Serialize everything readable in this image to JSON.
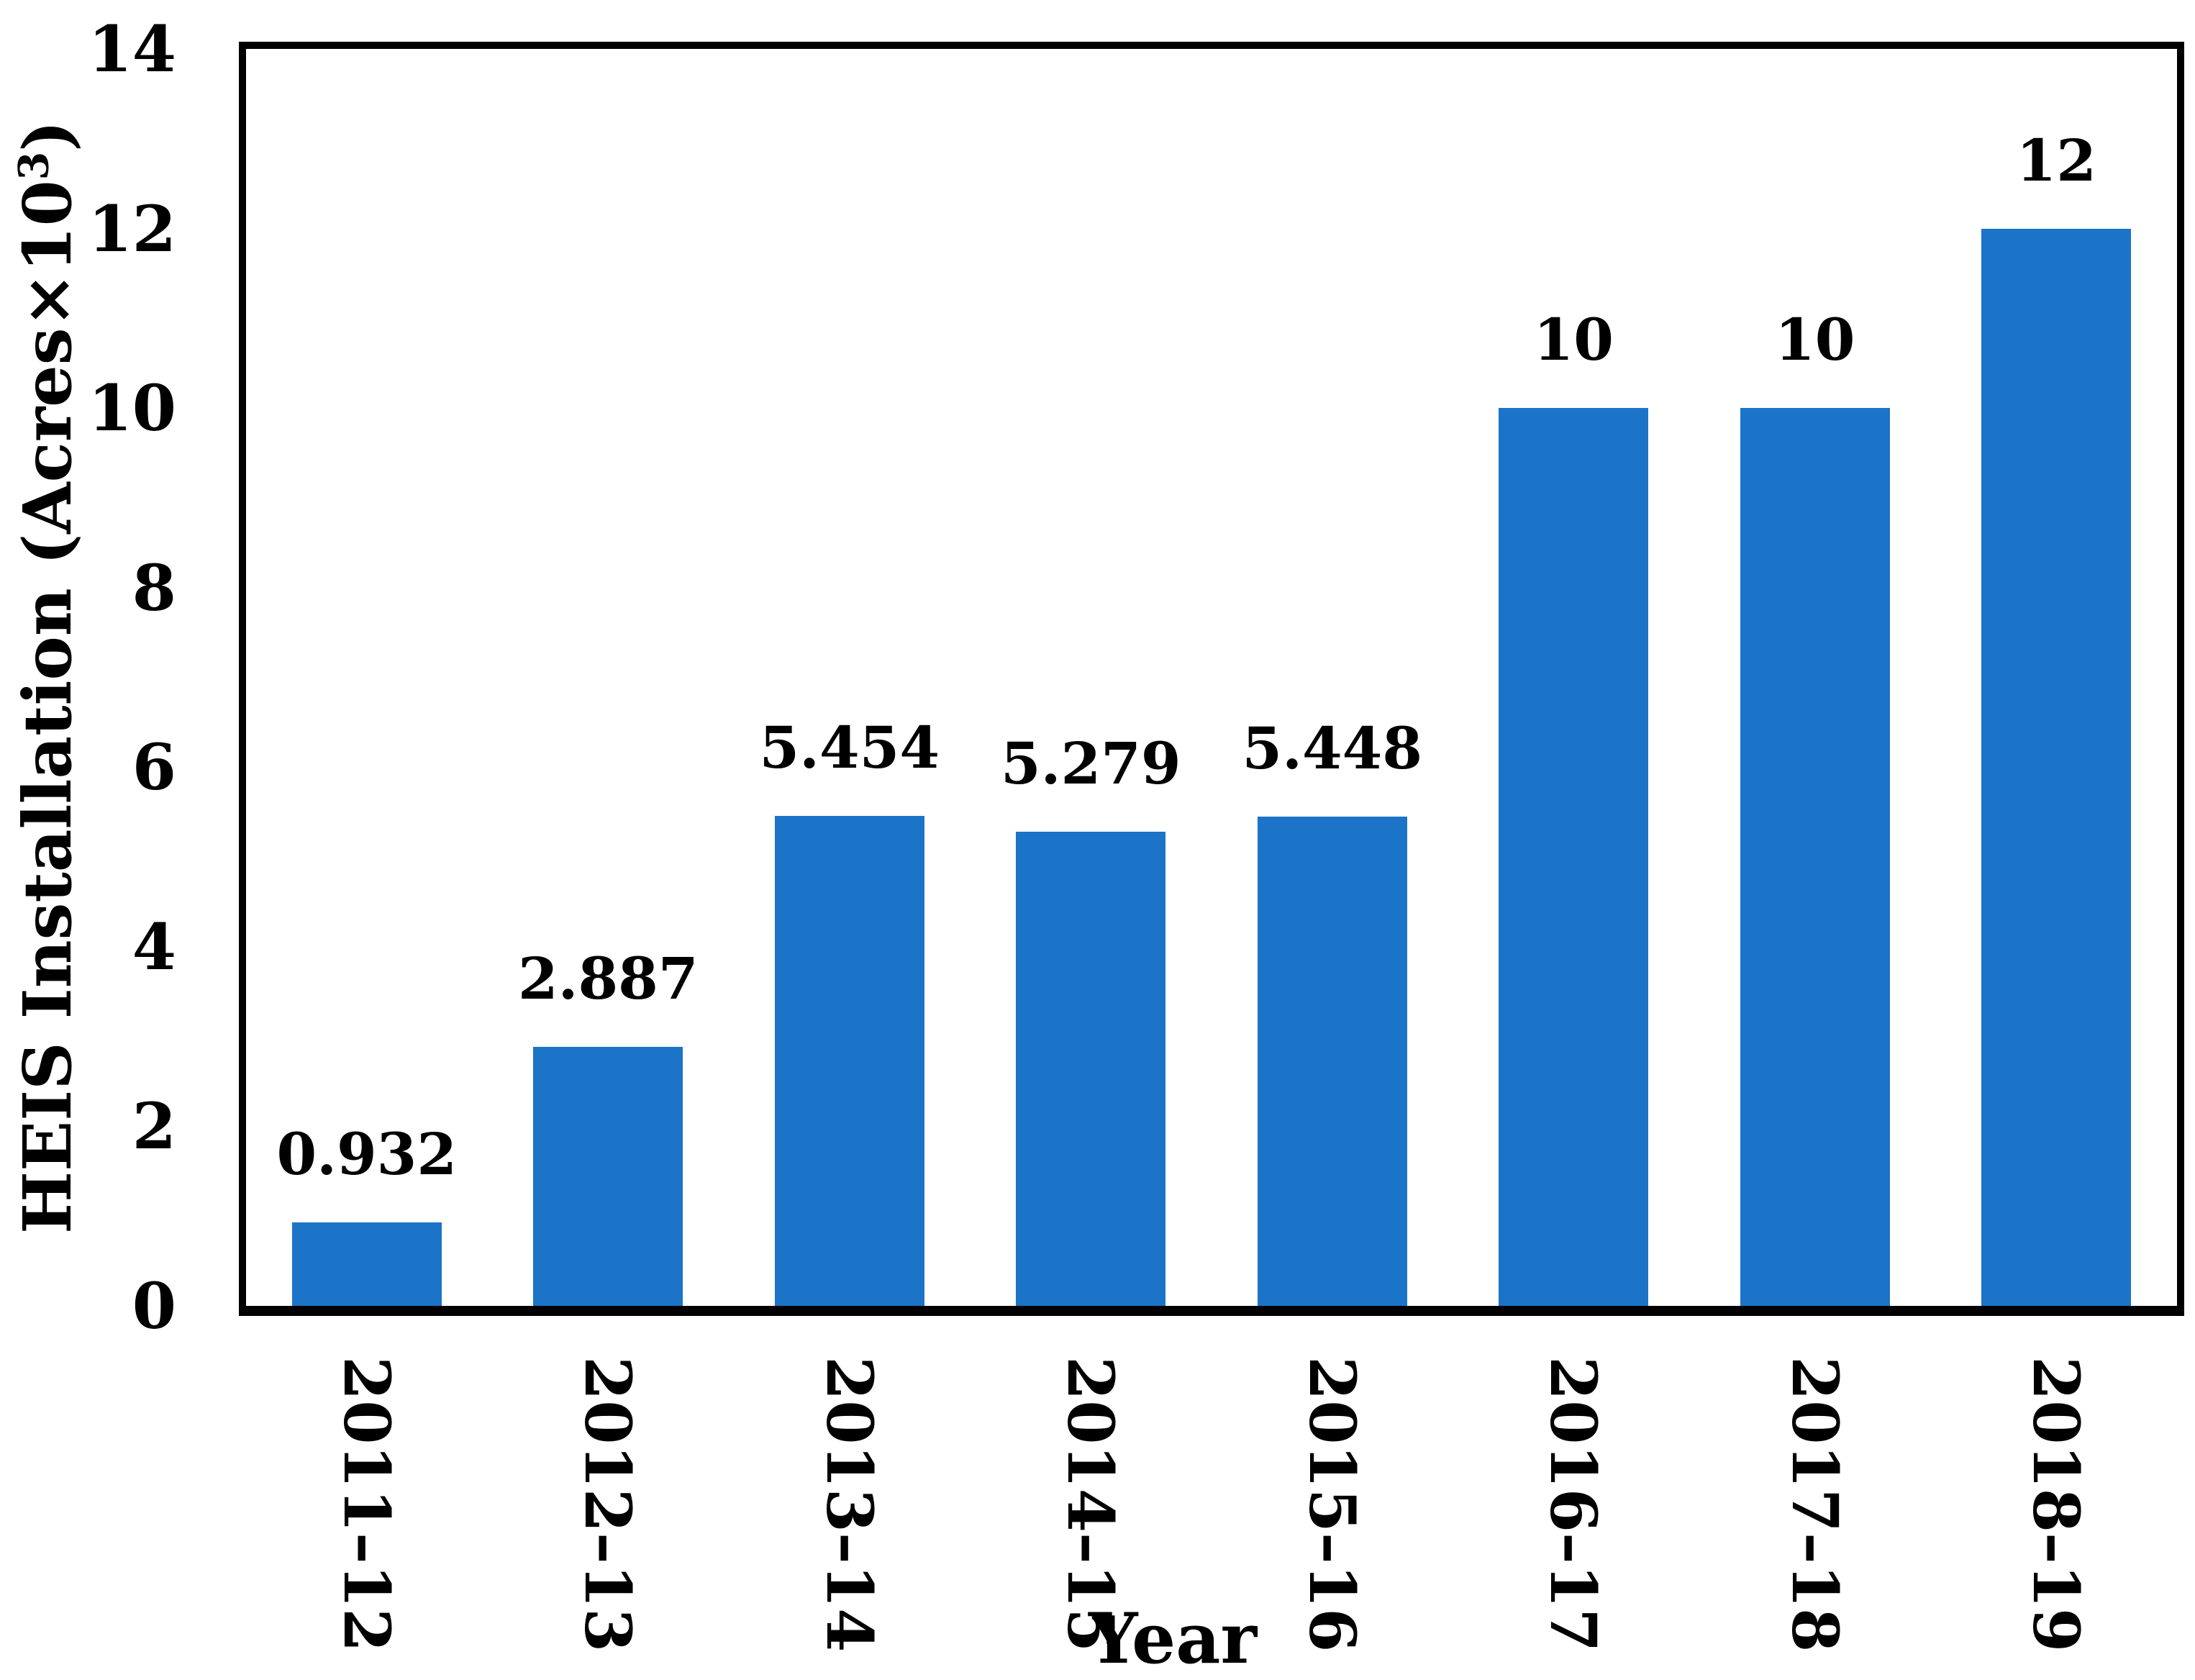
{
  "chart_data": {
    "type": "bar",
    "title": "",
    "categories": [
      "2011–12",
      "2012–13",
      "2013–14",
      "2014–15",
      "2015–16",
      "2016–17",
      "2017–18",
      "2018–19"
    ],
    "values": [
      0.932,
      2.887,
      5.454,
      5.279,
      5.448,
      10,
      10,
      12
    ],
    "value_labels": [
      "0.932",
      "2.887",
      "5.454",
      "5.279",
      "5.448",
      "10",
      "10",
      "12"
    ],
    "xlabel": "Year",
    "ylabel": "HEIS Installation (Acres×10³)",
    "ylabel_parts": {
      "pre": "HEIS Installation (Acres×10",
      "sup": "3",
      "post": ")"
    },
    "ylim": [
      0,
      14
    ],
    "yticks": [
      0,
      2,
      4,
      6,
      8,
      10,
      12,
      14
    ],
    "bar_color": "#1B74C8",
    "axis_color": "#000000",
    "text_color": "#000000",
    "grid": false,
    "legend": false,
    "x_tick_rotation_deg": 90,
    "bar_gap_ratio": 0.62
  }
}
